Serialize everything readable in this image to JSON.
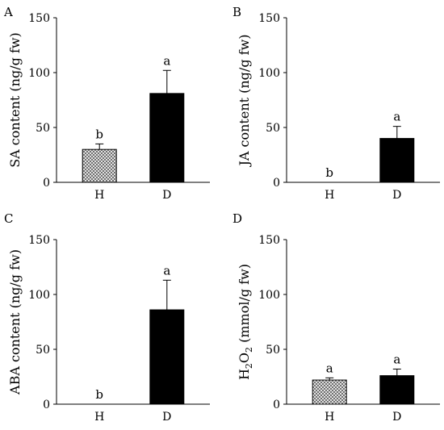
{
  "chart_data": [
    {
      "panel": "A",
      "type": "bar",
      "categories": [
        "H",
        "D"
      ],
      "values": [
        30,
        81
      ],
      "errors": [
        5,
        21
      ],
      "significance": [
        "b",
        "a"
      ],
      "ylabel": "SA content (ng/g fw)",
      "ylim": [
        0,
        150
      ],
      "yticks": [
        "0",
        "50",
        "100",
        "150"
      ],
      "fills": [
        "crosshatch",
        "#000000"
      ]
    },
    {
      "panel": "B",
      "type": "bar",
      "categories": [
        "H",
        "D"
      ],
      "values": [
        0,
        40
      ],
      "errors": [
        0,
        11
      ],
      "significance": [
        "b",
        "a"
      ],
      "ylabel": "JA content (ng/g fw)",
      "ylim": [
        0,
        150
      ],
      "yticks": [
        "0",
        "50",
        "100",
        "150"
      ],
      "fills": [
        "crosshatch",
        "#000000"
      ]
    },
    {
      "panel": "C",
      "type": "bar",
      "categories": [
        "H",
        "D"
      ],
      "values": [
        0,
        86
      ],
      "errors": [
        0,
        27
      ],
      "significance": [
        "b",
        "a"
      ],
      "ylabel": "ABA content (ng/g fw)",
      "ylim": [
        0,
        150
      ],
      "yticks": [
        "0",
        "50",
        "100",
        "150"
      ],
      "fills": [
        "crosshatch",
        "#000000"
      ]
    },
    {
      "panel": "D",
      "type": "bar",
      "categories": [
        "H",
        "D"
      ],
      "values": [
        22,
        26
      ],
      "errors": [
        2,
        6
      ],
      "significance": [
        "a",
        "a"
      ],
      "ylabel": "H2O2 (mmol/g fw)",
      "ylabel_parts": {
        "pre": "H",
        "sub1": "2",
        "mid": "O",
        "sub2": "2",
        "post": " (mmol/g fw)"
      },
      "ylim": [
        0,
        150
      ],
      "yticks": [
        "0",
        "50",
        "100",
        "150"
      ],
      "fills": [
        "crosshatch",
        "#000000"
      ]
    }
  ]
}
